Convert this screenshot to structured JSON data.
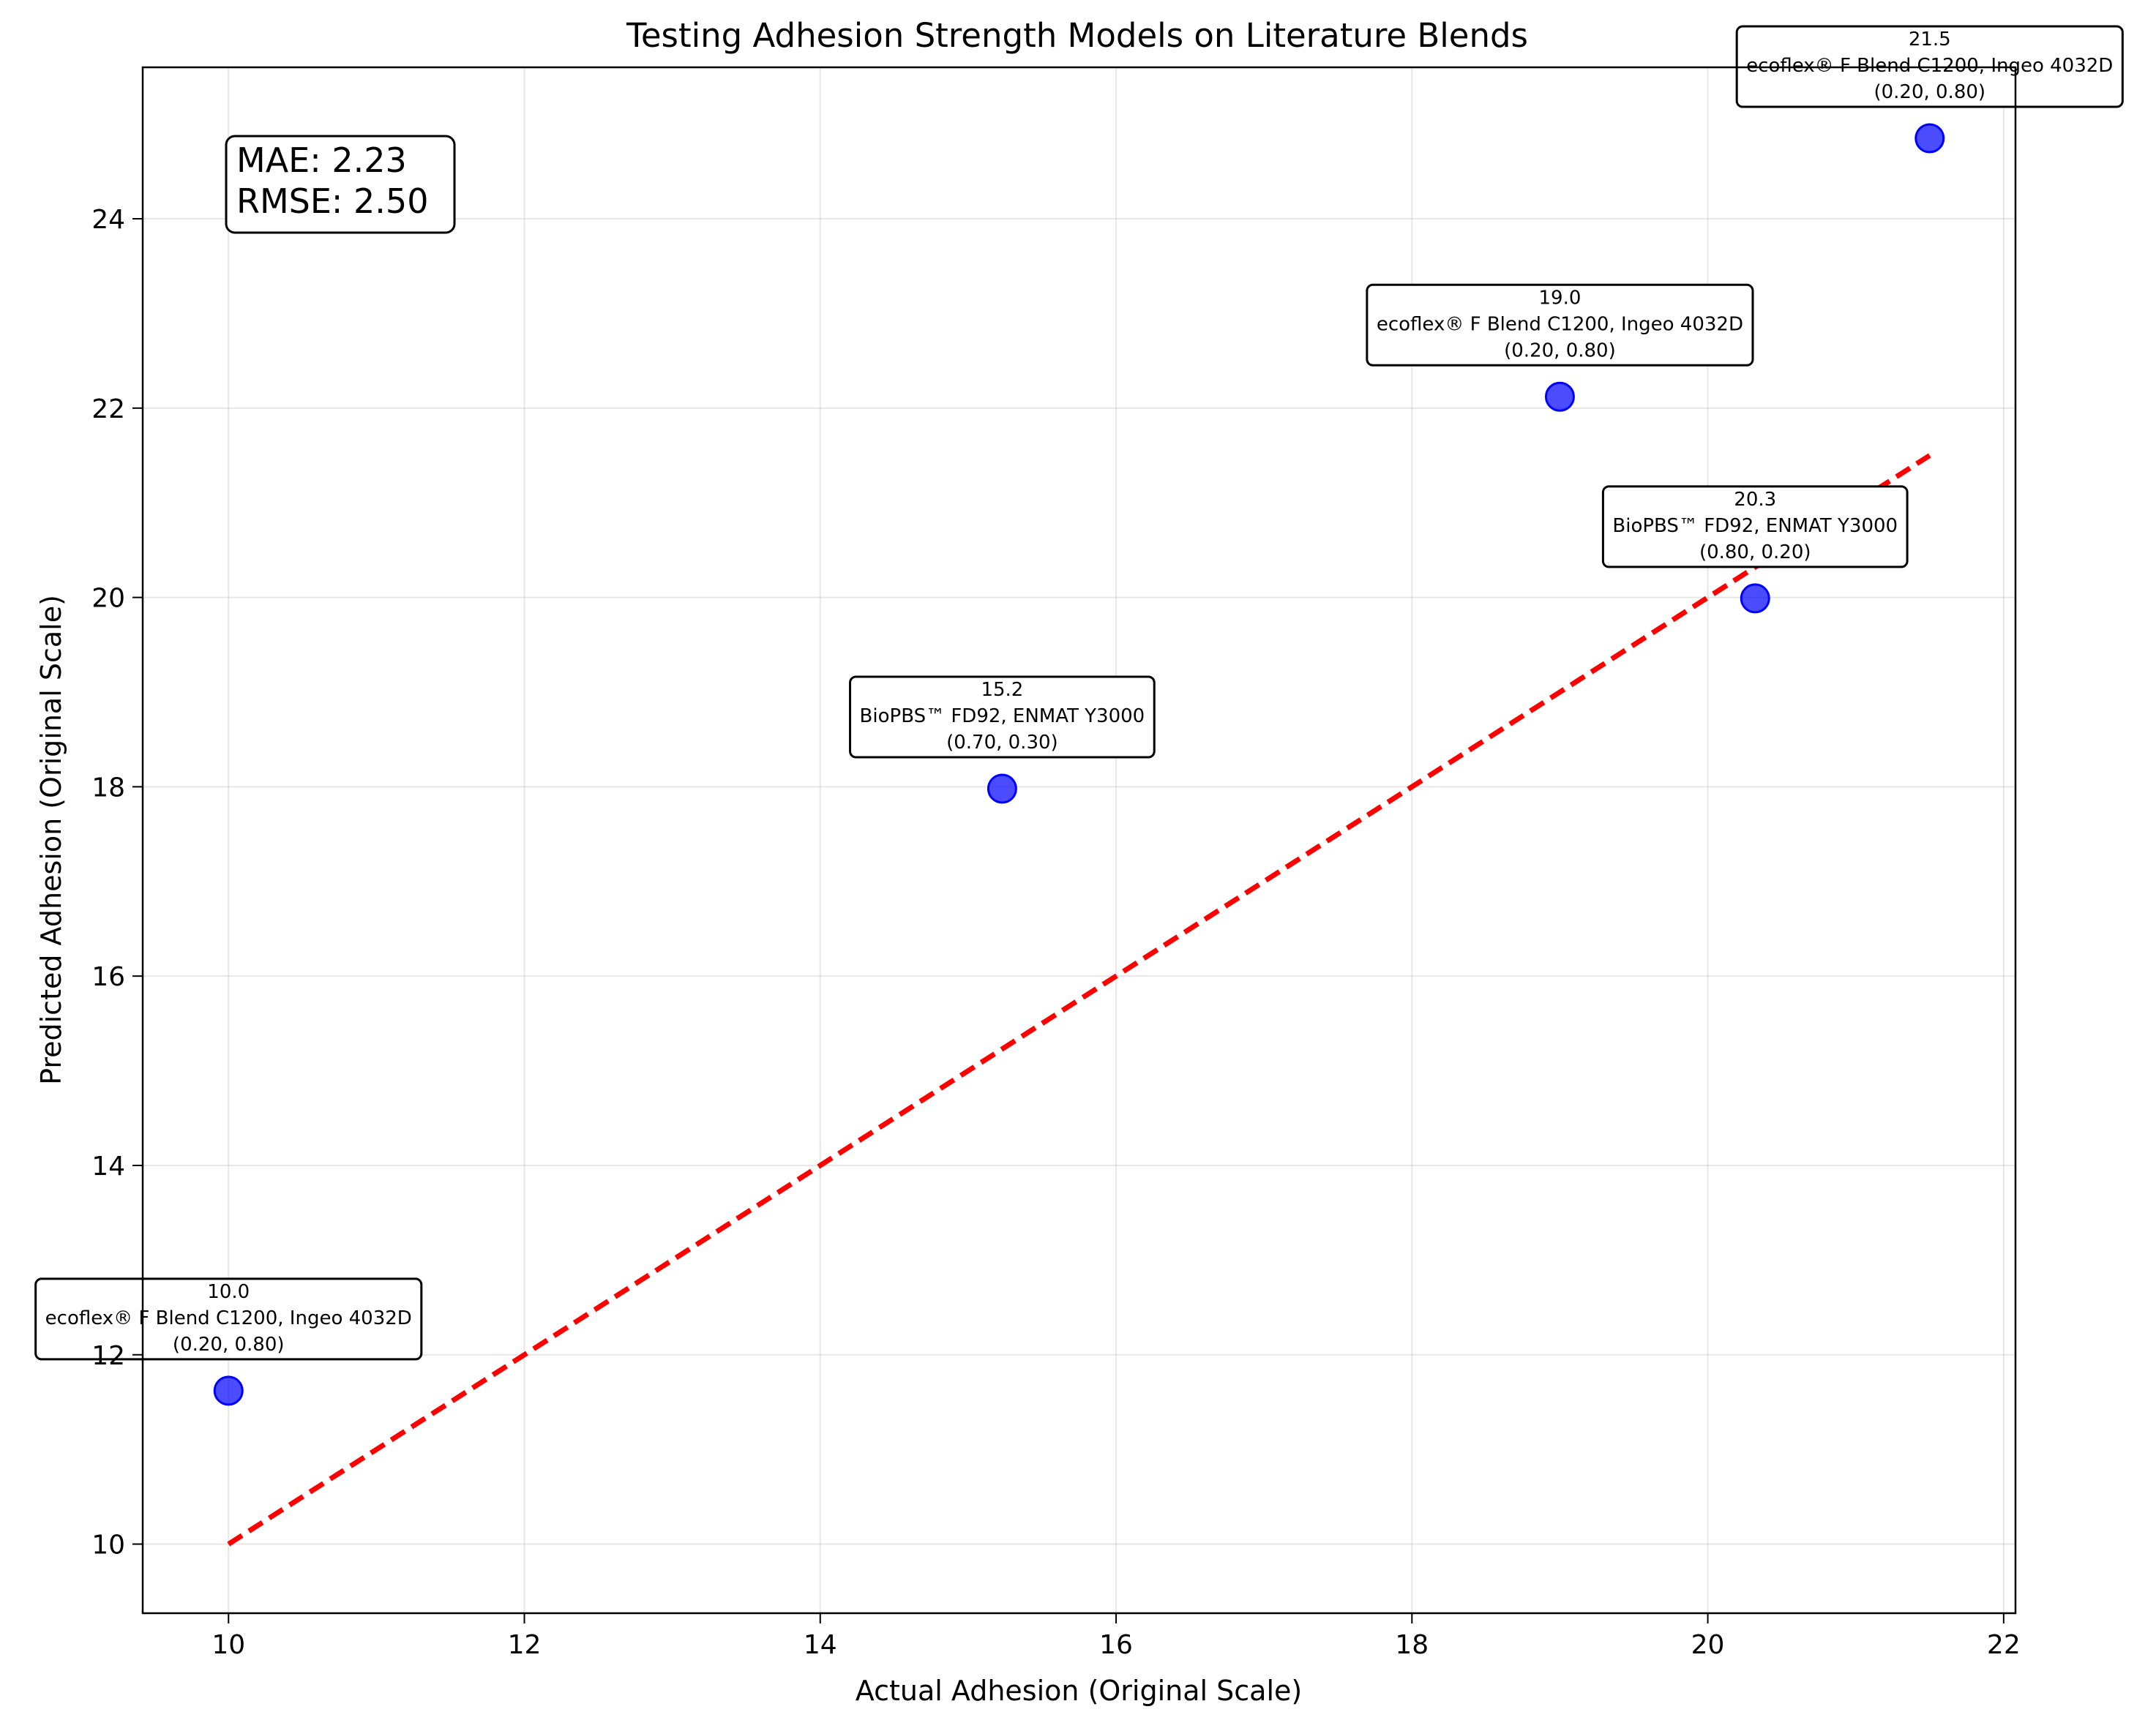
{
  "chart_data": {
    "type": "scatter",
    "title": "Testing Adhesion Strength Models on Literature Blends",
    "xlabel": "Actual Adhesion (Original Scale)",
    "ylabel": "Predicted Adhesion (Original Scale)",
    "xlim": [
      9.42,
      22.08
    ],
    "ylim": [
      9.27,
      25.6
    ],
    "xticks": [
      10,
      12,
      14,
      16,
      18,
      20,
      22
    ],
    "yticks": [
      10,
      12,
      14,
      16,
      18,
      20,
      22,
      24
    ],
    "grid": true,
    "points": [
      {
        "x": 10.0,
        "y": 11.62,
        "label_value": "10.0",
        "label_name": "ecoflex® F Blend C1200, Ingeo 4032D",
        "label_ratio": "(0.20, 0.80)"
      },
      {
        "x": 15.23,
        "y": 17.98,
        "label_value": "15.2",
        "label_name": "BioPBS™ FD92, ENMAT Y3000",
        "label_ratio": "(0.70, 0.30)"
      },
      {
        "x": 19.0,
        "y": 22.12,
        "label_value": "19.0",
        "label_name": "ecoflex® F Blend C1200, Ingeo 4032D",
        "label_ratio": "(0.20, 0.80)"
      },
      {
        "x": 20.32,
        "y": 19.99,
        "label_value": "20.3",
        "label_name": "BioPBS™ FD92, ENMAT Y3000",
        "label_ratio": "(0.80, 0.20)"
      },
      {
        "x": 21.5,
        "y": 24.85,
        "label_value": "21.5",
        "label_name": "ecoflex® F Blend C1200, Ingeo 4032D",
        "label_ratio": "(0.20, 0.80)"
      }
    ],
    "reference_line": {
      "x": [
        10.0,
        21.5
      ],
      "y": [
        10.0,
        21.5
      ],
      "style": "dashed",
      "color": "#ff0000"
    },
    "metrics": {
      "mae": "MAE: 2.23",
      "rmse": "RMSE: 2.50"
    },
    "point_color": "#0000ff"
  }
}
